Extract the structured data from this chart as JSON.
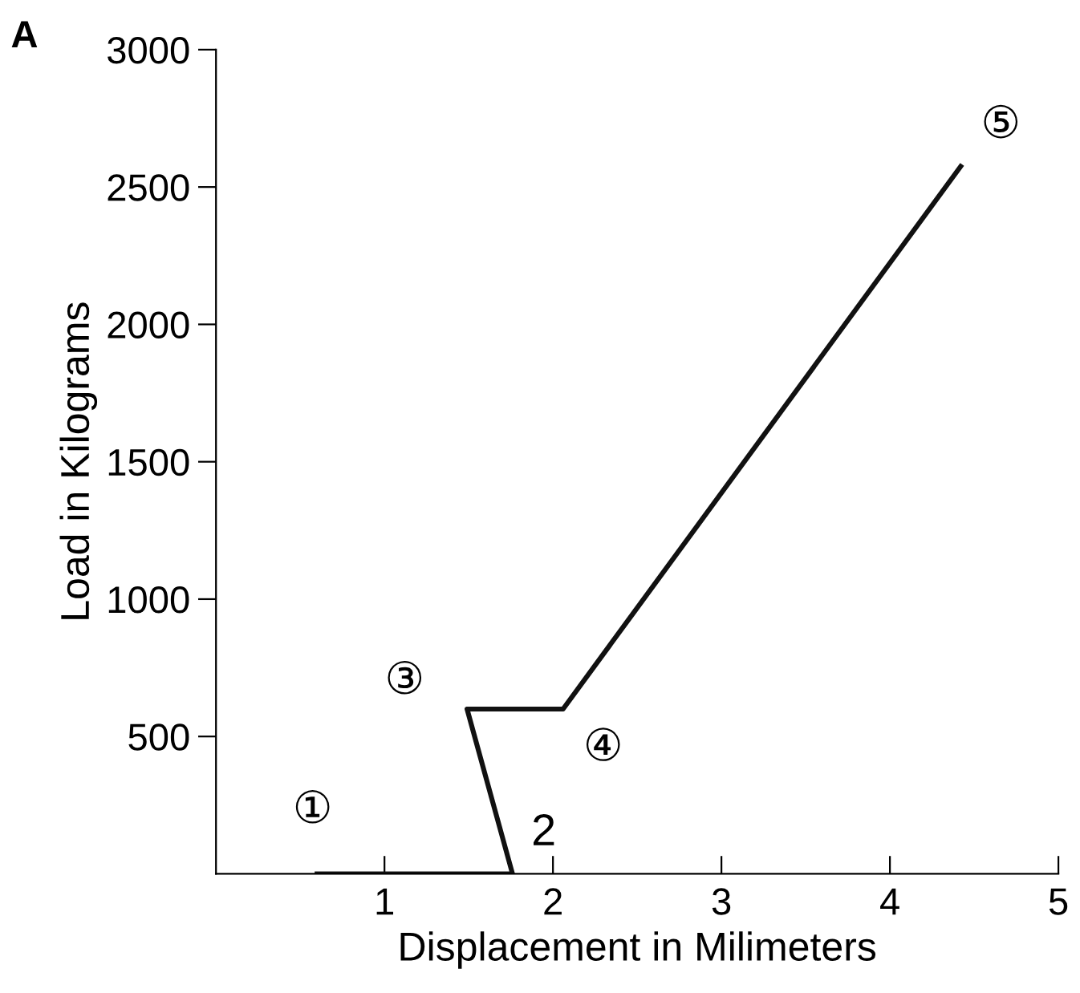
{
  "chart_data": {
    "type": "line",
    "xlabel": "Displacement in Milimeters",
    "ylabel": "Load in Kilograms",
    "x": [
      0.6,
      1.76,
      1.49,
      2.06,
      4.42
    ],
    "series": [
      {
        "color": "#111111",
        "values": [
          0,
          0,
          600,
          600,
          2575
        ]
      }
    ],
    "xlim": [
      0,
      5
    ],
    "ylim": [
      0,
      3000
    ],
    "xticks": [
      1,
      2,
      3,
      4,
      5
    ],
    "yticks": [
      500,
      1000,
      1500,
      2000,
      2500,
      3000
    ],
    "grid": false,
    "legend": false,
    "marker": "none",
    "line_style": "solid",
    "annotations": [
      "A",
      {
        "text": "①",
        "x": 0.6,
        "y": 0
      },
      {
        "text": "2",
        "x": 1.76,
        "y": 0
      },
      {
        "text": "③",
        "x": 1.49,
        "y": 600
      },
      {
        "text": "④",
        "x": 2.06,
        "y": 600
      },
      {
        "text": "⑤",
        "x": 4.42,
        "y": 2575
      }
    ]
  }
}
